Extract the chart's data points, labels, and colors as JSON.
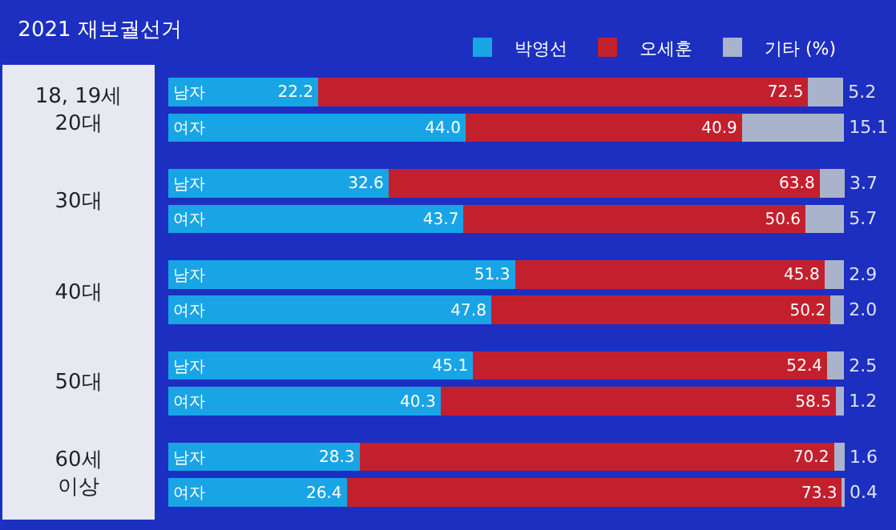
{
  "chart_data": {
    "type": "bar",
    "orientation": "horizontal",
    "stacked": true,
    "title": "2021 재보궐선거",
    "categories": [
      "남자",
      "여자",
      "남자",
      "여자",
      "남자",
      "여자",
      "남자",
      "여자",
      "남자",
      "여자"
    ],
    "annotations": [
      "18, 19세\n20대",
      "30대",
      "40대",
      "50대",
      "60세\n이상"
    ],
    "series": [
      {
        "name": "박영선",
        "color": "#19a4e6",
        "values": [
          22.2,
          44.0,
          32.6,
          43.7,
          51.3,
          47.8,
          45.1,
          40.3,
          28.3,
          26.4
        ],
        "value_labels": [
          "22.2",
          "44.0",
          "32.6",
          "43.7",
          "51.3",
          "47.8",
          "45.1",
          "40.3",
          "28.3",
          "26.4"
        ]
      },
      {
        "name": "오세훈",
        "color": "#c3202e",
        "values": [
          72.5,
          40.9,
          63.8,
          50.6,
          45.8,
          50.2,
          52.4,
          58.5,
          70.2,
          73.3
        ],
        "value_labels": [
          "72.5",
          "40.9",
          "63.8",
          "50.6",
          "45.8",
          "50.2",
          "52.4",
          "58.5",
          "70.2",
          "73.3"
        ]
      },
      {
        "name": "기타 (%)",
        "color": "#a9b3cc",
        "values": [
          5.2,
          15.1,
          3.7,
          5.7,
          2.9,
          2.0,
          2.5,
          1.2,
          1.6,
          0.4
        ],
        "value_labels": [
          "5.2",
          "15.1",
          "3.7",
          "5.7",
          "2.9",
          "2.0",
          "2.5",
          "1.2",
          "1.6",
          "0.4"
        ]
      }
    ],
    "legend": "top right",
    "grid": false
  }
}
